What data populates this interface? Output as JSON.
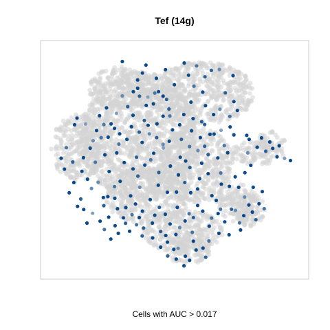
{
  "chart_data": {
    "type": "scatter",
    "title": "Tef (14g)",
    "xlabel": "",
    "ylabel": "",
    "caption": "Cells with AUC > 0.017",
    "xlim": [
      0,
      100
    ],
    "ylim": [
      0,
      100
    ],
    "grid": false,
    "axes_visible": false,
    "colors": {
      "background_cells": "#d3d3d3",
      "low": "#9fb6cc",
      "high": "#0d4a8a",
      "frame": "#cccccc"
    },
    "regions": [
      {
        "cx": 37,
        "cy": 60,
        "rx": 22,
        "ry": 27
      },
      {
        "cx": 60,
        "cy": 78,
        "rx": 20,
        "ry": 13
      },
      {
        "cx": 14,
        "cy": 55,
        "rx": 10,
        "ry": 14
      },
      {
        "cx": 30,
        "cy": 80,
        "rx": 12,
        "ry": 9
      },
      {
        "cx": 58,
        "cy": 48,
        "rx": 14,
        "ry": 16
      },
      {
        "cx": 53,
        "cy": 20,
        "rx": 15,
        "ry": 9
      },
      {
        "cx": 55,
        "cy": 12,
        "rx": 9,
        "ry": 6
      },
      {
        "cx": 81,
        "cy": 53,
        "rx": 10,
        "ry": 5
      },
      {
        "cx": 73,
        "cy": 32,
        "rx": 8,
        "ry": 8
      },
      {
        "cx": 78,
        "cy": 29,
        "rx": 6,
        "ry": 7
      },
      {
        "cx": 86,
        "cy": 58,
        "rx": 5,
        "ry": 4
      },
      {
        "cx": 40,
        "cy": 35,
        "rx": 16,
        "ry": 12
      }
    ],
    "series": [
      {
        "points": [
          [
            30.5,
            91.2,
            1
          ],
          [
            39.3,
            89.7,
            1
          ],
          [
            53.6,
            90.6,
            1
          ],
          [
            58.2,
            89.4,
            0.8
          ],
          [
            63.7,
            87.5,
            0.9
          ],
          [
            66.7,
            87.9,
            0.7
          ],
          [
            71.8,
            85.3,
            1
          ],
          [
            36.2,
            80.0,
            1
          ],
          [
            34.6,
            78.6,
            1
          ],
          [
            36.9,
            76.7,
            0.9
          ],
          [
            44.0,
            78.6,
            1
          ],
          [
            45.7,
            76.7,
            1
          ],
          [
            42.6,
            78.0,
            0.8
          ],
          [
            56.1,
            74.2,
            1
          ],
          [
            61.5,
            72.7,
            1
          ],
          [
            60.1,
            66.0,
            0.9
          ],
          [
            48.2,
            68.4,
            0.8
          ],
          [
            13.6,
            67.5,
            1
          ],
          [
            12.7,
            64.7,
            1
          ],
          [
            16.8,
            65.0,
            0.6
          ],
          [
            19.6,
            58.0,
            0.7
          ],
          [
            16.0,
            50.9,
            1
          ],
          [
            12.0,
            49.1,
            0.9
          ],
          [
            8.9,
            46.1,
            1
          ],
          [
            22.0,
            68.5,
            1
          ],
          [
            24.6,
            71.8,
            1
          ],
          [
            23.6,
            64.8,
            0.8
          ],
          [
            27.6,
            63.2,
            1
          ],
          [
            25.2,
            59.5,
            1
          ],
          [
            29.2,
            56.6,
            0.8
          ],
          [
            33.9,
            63.9,
            1
          ],
          [
            38.7,
            66.5,
            0.9
          ],
          [
            40.6,
            60.9,
            0.7
          ],
          [
            37.9,
            57.3,
            1
          ],
          [
            43.3,
            59.3,
            0.9
          ],
          [
            45.8,
            55.0,
            0.6
          ],
          [
            31.2,
            48.9,
            1
          ],
          [
            34.5,
            46.2,
            1
          ],
          [
            36.3,
            43.2,
            0.9
          ],
          [
            29.7,
            41.0,
            1
          ],
          [
            25.6,
            45.1,
            1
          ],
          [
            21.5,
            40.6,
            0.7
          ],
          [
            41.1,
            50.0,
            0.8
          ],
          [
            48.4,
            47.4,
            1
          ],
          [
            51.4,
            43.7,
            1
          ],
          [
            55.7,
            46.8,
            0.9
          ],
          [
            60.1,
            48.6,
            1
          ],
          [
            62.5,
            52.2,
            0.9
          ],
          [
            58.6,
            37.8,
            1
          ],
          [
            63.9,
            35.0,
            1
          ],
          [
            58.6,
            30.9,
            1
          ],
          [
            55.4,
            27.4,
            0.8
          ],
          [
            51.0,
            30.1,
            1
          ],
          [
            46.5,
            27.2,
            1
          ],
          [
            40.9,
            33.3,
            1
          ],
          [
            38.0,
            28.5,
            1
          ],
          [
            34.1,
            27.0,
            0.8
          ],
          [
            30.9,
            25.7,
            1
          ],
          [
            27.8,
            22.4,
            1
          ],
          [
            33.2,
            20.1,
            1
          ],
          [
            38.4,
            21.4,
            0.9
          ],
          [
            41.7,
            23.5,
            1
          ],
          [
            44.8,
            20.0,
            0.9
          ],
          [
            48.3,
            23.1,
            1
          ],
          [
            51.9,
            21.6,
            0.7
          ],
          [
            53.9,
            24.4,
            1
          ],
          [
            57.0,
            25.8,
            0.9
          ],
          [
            60.5,
            28.5,
            1
          ],
          [
            63.8,
            25.6,
            0.8
          ],
          [
            66.2,
            27.5,
            1
          ],
          [
            62.9,
            22.2,
            1
          ],
          [
            56.6,
            19.6,
            0.8
          ],
          [
            50.5,
            18.7,
            1
          ],
          [
            47.3,
            15.5,
            1
          ],
          [
            49.7,
            12.5,
            1
          ],
          [
            54.0,
            9.6,
            1
          ],
          [
            58.0,
            12.2,
            1
          ],
          [
            61.6,
            9.2,
            0.9
          ],
          [
            62.8,
            16.0,
            0.8
          ],
          [
            57.0,
            15.9,
            1
          ],
          [
            53.5,
            5.6,
            1
          ],
          [
            51.3,
            12.9,
            0.7
          ],
          [
            46.7,
            18.3,
            1
          ],
          [
            23.6,
            30.8,
            0.9
          ],
          [
            23.4,
            34.2,
            1
          ],
          [
            28.7,
            29.5,
            1
          ],
          [
            15.0,
            33.6,
            0.9
          ],
          [
            10.7,
            36.2,
            1
          ],
          [
            13.8,
            30.5,
            1
          ],
          [
            17.3,
            23.5,
            1
          ],
          [
            25.4,
            26.0,
            1
          ],
          [
            31.7,
            23.4,
            0.9
          ],
          [
            23.8,
            20.8,
            0.8
          ],
          [
            76.9,
            60.3,
            1
          ],
          [
            77.8,
            58.6,
            1
          ],
          [
            85.5,
            57.5,
            1
          ],
          [
            86.6,
            54.8,
            1
          ],
          [
            84.0,
            53.6,
            0.9
          ],
          [
            91.0,
            50.6,
            0.6
          ],
          [
            93.2,
            49.7,
            1
          ],
          [
            78.4,
            47.7,
            1
          ],
          [
            76.2,
            44.6,
            1
          ],
          [
            73.9,
            38.5,
            1
          ],
          [
            70.4,
            38.9,
            1
          ],
          [
            72.6,
            42.9,
            1
          ],
          [
            67.4,
            39.8,
            1
          ],
          [
            76.1,
            34.4,
            0.7
          ],
          [
            77.7,
            31.1,
            1
          ],
          [
            81.5,
            31.6,
            1
          ],
          [
            75.8,
            26.6,
            1
          ],
          [
            72.7,
            28.8,
            0.7
          ],
          [
            80.3,
            24.9,
            0.9
          ],
          [
            68.7,
            24.0,
            1
          ],
          [
            71.2,
            29.3,
            0.9
          ],
          [
            70.3,
            18.6,
            1
          ],
          [
            74.6,
            20.6,
            1
          ],
          [
            67.2,
            44.5,
            0.8
          ],
          [
            66.1,
            50.8,
            1
          ],
          [
            68.5,
            56.0,
            0.8
          ],
          [
            64.7,
            60.8,
            1
          ],
          [
            67.3,
            62.4,
            0.6
          ],
          [
            70.6,
            68.2,
            0.8
          ],
          [
            45.7,
            68.3,
            1
          ],
          [
            49.2,
            62.6,
            1
          ],
          [
            52.5,
            58.6,
            0.9
          ],
          [
            55.6,
            55.6,
            0.8
          ],
          [
            61.2,
            55.7,
            0.9
          ],
          [
            63.2,
            60.7,
            1
          ],
          [
            39.4,
            72.8,
            1
          ],
          [
            32.5,
            72.3,
            0.9
          ],
          [
            30.5,
            76.8,
            0.7
          ],
          [
            34.5,
            68.7,
            1
          ],
          [
            28.3,
            69.5,
            0.6
          ],
          [
            22.6,
            59.3,
            0.8
          ],
          [
            15.4,
            45.2,
            1
          ],
          [
            20.4,
            49.0,
            0.8
          ],
          [
            24.0,
            52.1,
            1
          ],
          [
            27.6,
            38.8,
            0.8
          ],
          [
            25.1,
            34.6,
            1
          ],
          [
            33.6,
            34.9,
            1
          ],
          [
            37.0,
            38.5,
            0.7
          ],
          [
            43.9,
            39.4,
            1
          ],
          [
            47.3,
            36.4,
            1
          ],
          [
            50.7,
            36.5,
            1
          ],
          [
            53.8,
            40.5,
            0.9
          ],
          [
            56.0,
            36.2,
            1
          ],
          [
            59.3,
            42.1,
            1
          ],
          [
            62.5,
            44.2,
            1
          ],
          [
            52.1,
            51.1,
            1
          ],
          [
            44.1,
            44.7,
            0.9
          ],
          [
            38.9,
            47.8,
            1
          ],
          [
            35.8,
            51.1,
            0.9
          ],
          [
            28.4,
            52.9,
            1
          ],
          [
            32.2,
            58.6,
            1
          ],
          [
            42.2,
            52.8,
            1
          ],
          [
            45.7,
            56.5,
            0.7
          ],
          [
            48.0,
            57.8,
            1
          ],
          [
            51.9,
            64.7,
            1
          ],
          [
            56.3,
            62.2,
            1
          ],
          [
            59.6,
            59.3,
            1
          ],
          [
            58.7,
            53.9,
            0.7
          ],
          [
            54.1,
            49.5,
            1
          ],
          [
            65.5,
            33.0,
            1
          ],
          [
            67.1,
            29.3,
            0.8
          ],
          [
            44.3,
            30.1,
            0.9
          ],
          [
            42.6,
            26.8,
            1
          ],
          [
            36.8,
            25.8,
            1
          ],
          [
            35.4,
            31.5,
            1
          ],
          [
            31.8,
            30.0,
            1
          ],
          [
            27.7,
            33.9,
            1
          ],
          [
            19.0,
            38.0,
            0.7
          ],
          [
            17.5,
            41.9,
            1
          ],
          [
            12.4,
            40.5,
            1
          ],
          [
            9.6,
            55.1,
            0.8
          ],
          [
            7.7,
            50.7,
            1
          ],
          [
            18.5,
            54.9,
            1
          ],
          [
            20.9,
            62.3,
            1
          ],
          [
            26.3,
            65.1,
            1
          ],
          [
            29.5,
            60.9,
            1
          ],
          [
            36.8,
            61.6,
            0.9
          ],
          [
            40.1,
            64.5,
            1
          ],
          [
            43.4,
            65.1,
            1
          ],
          [
            47.9,
            71.3,
            0.9
          ],
          [
            53.4,
            69.0,
            1
          ],
          [
            56.9,
            67.3,
            1
          ],
          [
            61.2,
            64.8,
            0.9
          ],
          [
            64.5,
            69.0,
            1
          ],
          [
            66.9,
            71.2,
            0.7
          ],
          [
            60.5,
            78.4,
            1
          ],
          [
            57.2,
            80.9,
            0.8
          ],
          [
            49.9,
            81.5,
            1
          ],
          [
            47.0,
            75.3,
            0.9
          ],
          [
            42.1,
            73.5,
            1
          ],
          [
            40.0,
            76.3,
            0.6
          ],
          [
            36.2,
            83.5,
            1
          ],
          [
            38.0,
            86.4,
            1
          ],
          [
            43.2,
            84.2,
            1
          ],
          [
            46.6,
            87.8,
            1
          ],
          [
            55.2,
            85.5,
            1
          ],
          [
            61.3,
            84.8,
            0.9
          ],
          [
            68.9,
            78.1,
            0.9
          ],
          [
            72.1,
            74.4,
            1
          ],
          [
            73.4,
            70.7,
            1
          ],
          [
            70.7,
            63.8,
            1
          ],
          [
            72.1,
            60.5,
            1
          ],
          [
            69.8,
            53.0,
            1
          ],
          [
            77.3,
            52.9,
            0.7
          ],
          [
            80.8,
            55.3,
            1
          ],
          [
            88.2,
            51.3,
            1
          ],
          [
            89.0,
            55.9,
            1
          ],
          [
            82.4,
            59.2,
            1
          ],
          [
            79.3,
            38.5,
            1
          ],
          [
            82.7,
            36.7,
            1
          ],
          [
            83.4,
            29.5,
            0.8
          ],
          [
            79.0,
            28.1,
            1
          ],
          [
            74.2,
            23.6,
            0.8
          ],
          [
            66.5,
            19.2,
            1
          ],
          [
            60.6,
            13.0,
            1
          ],
          [
            55.6,
            7.9,
            1
          ],
          [
            50.6,
            8.4,
            1
          ],
          [
            47.4,
            9.7,
            0.9
          ],
          [
            44.8,
            13.4,
            1
          ],
          [
            41.8,
            17.3,
            1
          ],
          [
            37.9,
            18.1,
            0.9
          ],
          [
            35.8,
            22.8,
            0.8
          ],
          [
            29.0,
            19.2,
            1
          ],
          [
            26.2,
            16.8,
            1
          ],
          [
            22.2,
            24.3,
            1
          ],
          [
            19.4,
            27.6,
            0.6
          ],
          [
            16.1,
            29.2,
            1
          ]
        ]
      }
    ]
  }
}
